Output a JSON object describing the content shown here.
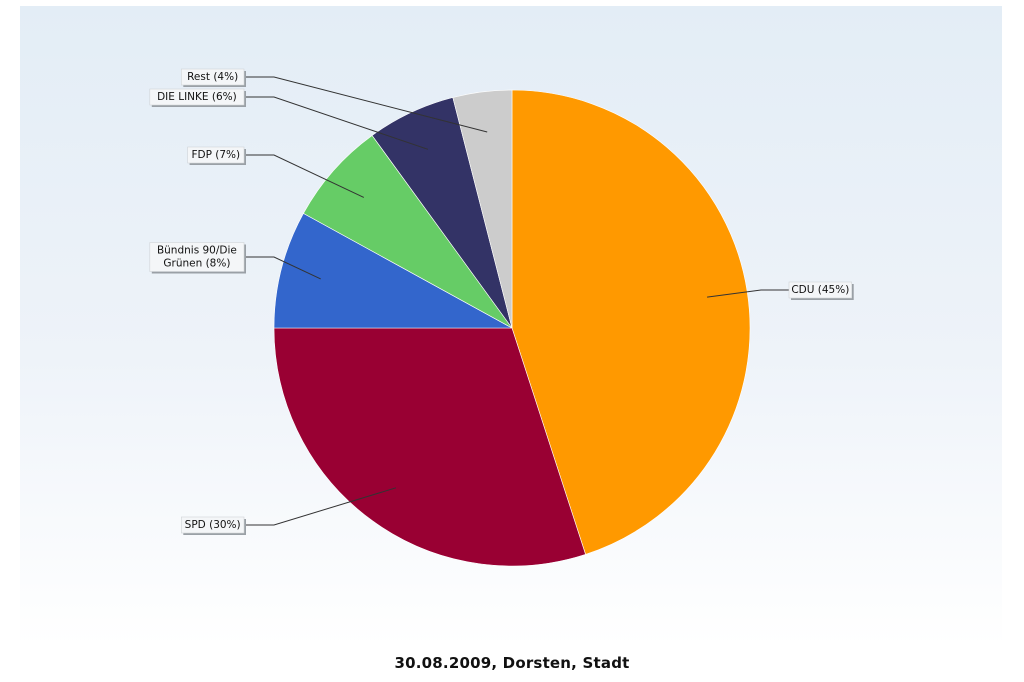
{
  "chart_data": {
    "type": "pie",
    "title": "30.08.2009, Dorsten, Stadt",
    "legend": "none",
    "start_angle_deg": 0,
    "direction": "clockwise",
    "slices": [
      {
        "label": "CDU (45%)",
        "name": "CDU",
        "value": 45,
        "color": "#ff9900"
      },
      {
        "label": "SPD (30%)",
        "name": "SPD",
        "value": 30,
        "color": "#990033"
      },
      {
        "label": "Bündnis 90/Die Grünen (8%)",
        "label_lines": [
          "Bündnis 90/Die",
          "Grünen (8%)"
        ],
        "name": "Bündnis 90/Die Grünen",
        "value": 8,
        "color": "#3366cc"
      },
      {
        "label": "FDP (7%)",
        "name": "FDP",
        "value": 7,
        "color": "#66cc66"
      },
      {
        "label": "DIE LINKE (6%)",
        "name": "DIE LINKE",
        "value": 6,
        "color": "#333366"
      },
      {
        "label": "Rest (4%)",
        "name": "Rest",
        "value": 4,
        "color": "#cccccc"
      }
    ]
  }
}
